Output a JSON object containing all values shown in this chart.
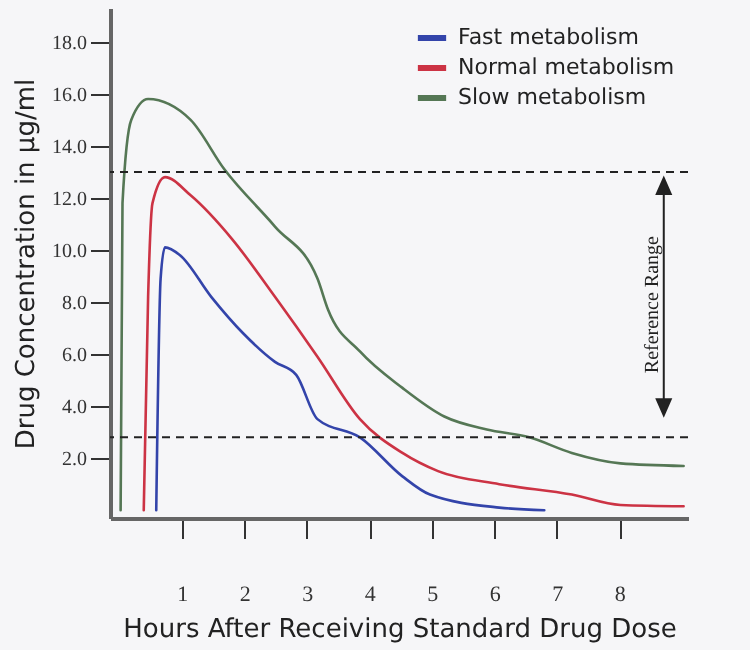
{
  "chart_data": {
    "type": "line",
    "xlabel": "Hours After Receiving Standard Drug Dose",
    "ylabel": "Drug Concentration in µg/ml",
    "xlim": [
      -0.15,
      9.1
    ],
    "xticks": [
      1,
      2,
      3,
      4,
      5,
      6,
      7,
      8
    ],
    "ylim": [
      -0.3,
      19.3
    ],
    "yticks": [
      {
        "value": 2,
        "label": "2.0"
      },
      {
        "value": 4,
        "label": "4.0"
      },
      {
        "value": 6,
        "label": "6.0"
      },
      {
        "value": 8,
        "label": "8.0"
      },
      {
        "value": 10,
        "label": "10.0"
      },
      {
        "value": 12,
        "label": "12.0"
      },
      {
        "value": 14,
        "label": "14.0"
      },
      {
        "value": 16,
        "label": "16.0"
      },
      {
        "value": 18,
        "label": "18.0"
      }
    ],
    "grid": false,
    "legend": "top right",
    "marker": "none",
    "line_style": "solid",
    "series": [
      {
        "name": "Fast metabolism",
        "color": "#3344aa",
        "x": [
          0.59,
          0.66,
          0.73,
          0.97,
          1.47,
          1.98,
          2.49,
          2.83,
          3.17,
          3.85,
          4.53,
          4.97,
          6.08,
          6.8
        ],
        "values": [
          0,
          8.9,
          10.1,
          9.8,
          8.2,
          6.8,
          5.7,
          5.2,
          3.5,
          2.8,
          1.3,
          0.6,
          0.1,
          0
        ]
      },
      {
        "name": "Normal metabolism",
        "color": "#cc3344",
        "x": [
          0.39,
          0.46,
          0.53,
          0.73,
          1.14,
          1.81,
          2.49,
          3.17,
          3.85,
          4.53,
          5.1,
          6.08,
          7.24,
          8.02,
          9.03
        ],
        "values": [
          0,
          8.2,
          11.8,
          12.8,
          12.1,
          10.4,
          8.2,
          5.9,
          3.5,
          2.2,
          1.5,
          1.0,
          0.6,
          0.2,
          0.15
        ]
      },
      {
        "name": "Slow metabolism",
        "color": "#557755",
        "x": [
          0.02,
          0.05,
          0.19,
          0.46,
          1.14,
          1.68,
          2.49,
          3.17,
          3.34,
          3.85,
          4.53,
          5.2,
          5.88,
          6.56,
          7.24,
          8.02,
          9.03
        ],
        "values": [
          0,
          11.8,
          15,
          15.8,
          15,
          13.1,
          10.9,
          8.9,
          7.7,
          6.1,
          4.7,
          3.6,
          3.1,
          2.8,
          2.2,
          1.8,
          1.7
        ]
      }
    ],
    "ref_lines": [
      {
        "axis": "y",
        "value": 13.0,
        "line_style": "dashed",
        "color": "#222222"
      },
      {
        "axis": "y",
        "value": 2.8,
        "line_style": "dashed",
        "color": "#222222"
      }
    ],
    "annotations": [
      "Reference Range"
    ]
  }
}
